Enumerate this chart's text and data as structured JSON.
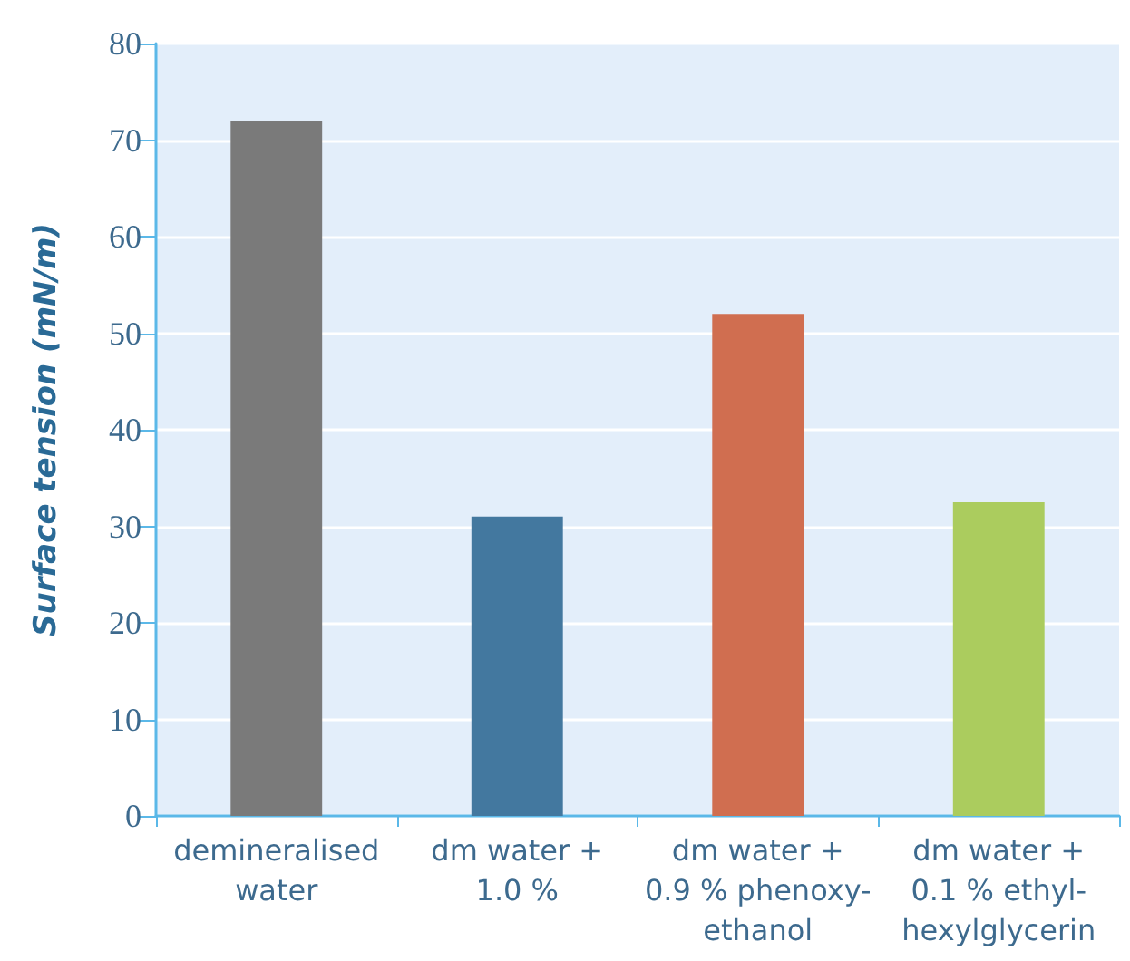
{
  "chart_data": {
    "type": "bar",
    "ylabel": "Surface tension (mN/m)",
    "categories": [
      "demineralised\nwater",
      "dm water +\n1.0 %",
      "dm water +\n0.9 % phenoxy-\nethanol",
      "dm water +\n0.1 % ethyl-\nhexylglycerin"
    ],
    "values": [
      72,
      31,
      52,
      32.5
    ],
    "colors": [
      "#7a7a7a",
      "#43789f",
      "#d06e50",
      "#abcc5e"
    ],
    "ylim": [
      0,
      80
    ],
    "yticks": [
      0,
      10,
      20,
      30,
      40,
      50,
      60,
      70,
      80
    ],
    "grid": "y"
  }
}
